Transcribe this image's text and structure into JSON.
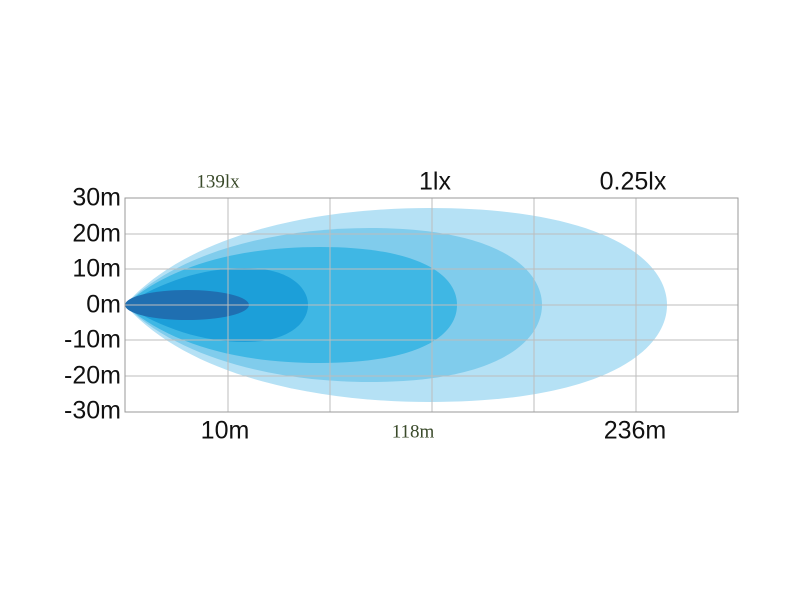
{
  "y_axis": {
    "labels": [
      "30m",
      "20m",
      "10m",
      "0m",
      "-10m",
      "-20m",
      "-30m"
    ]
  },
  "top_labels": [
    "139lx",
    "1lx",
    "0.25lx"
  ],
  "bottom_labels": [
    "10m",
    "118m",
    "236m"
  ]
}
